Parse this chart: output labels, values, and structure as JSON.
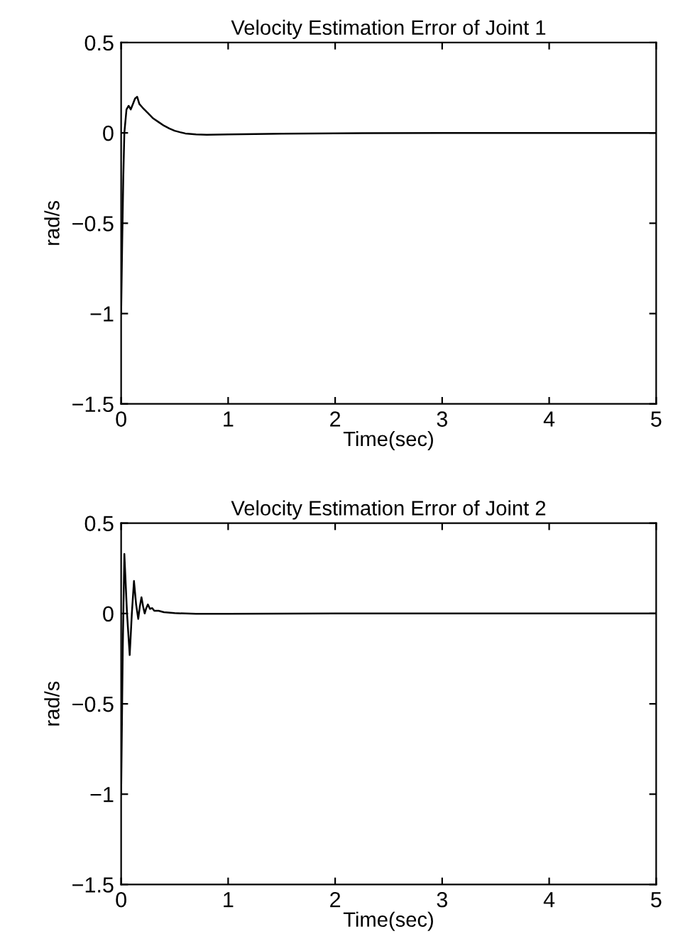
{
  "chart_data": [
    {
      "type": "line",
      "title": "Velocity Estimation Error of Joint 1",
      "xlabel": "Time(sec)",
      "ylabel": "rad/s",
      "xlim": [
        0,
        5
      ],
      "ylim": [
        -1.5,
        0.5
      ],
      "xticks": [
        0,
        1,
        2,
        3,
        4,
        5
      ],
      "yticks": [
        {
          "value": -1.5,
          "label": "−1.5"
        },
        {
          "value": -1,
          "label": "−1"
        },
        {
          "value": -0.5,
          "label": "−0.5"
        },
        0,
        0.5
      ],
      "grid": false,
      "legend": false,
      "series": [
        {
          "color": "#000000",
          "x": [
            0,
            0.01,
            0.02,
            0.03,
            0.05,
            0.07,
            0.09,
            0.11,
            0.13,
            0.15,
            0.17,
            0.2,
            0.25,
            0.3,
            0.35,
            0.4,
            0.45,
            0.5,
            0.55,
            0.6,
            0.7,
            0.8,
            1,
            1.5,
            2,
            3,
            4,
            5
          ],
          "values": [
            -1.0,
            -0.6,
            -0.25,
            0.0,
            0.13,
            0.15,
            0.13,
            0.16,
            0.19,
            0.2,
            0.16,
            0.14,
            0.11,
            0.08,
            0.06,
            0.04,
            0.025,
            0.012,
            0.004,
            -0.003,
            -0.008,
            -0.01,
            -0.008,
            -0.004,
            -0.002,
            0,
            0,
            0
          ]
        }
      ]
    },
    {
      "type": "line",
      "title": "Velocity Estimation Error of Joint 2",
      "xlabel": "Time(sec)",
      "ylabel": "rad/s",
      "xlim": [
        0,
        5
      ],
      "ylim": [
        -1.5,
        0.5
      ],
      "xticks": [
        0,
        1,
        2,
        3,
        4,
        5
      ],
      "yticks": [
        {
          "value": -1.5,
          "label": "−1.5"
        },
        {
          "value": -1,
          "label": "−1"
        },
        {
          "value": -0.5,
          "label": "−0.5"
        },
        0,
        0.5
      ],
      "grid": false,
      "legend": false,
      "series": [
        {
          "color": "#000000",
          "x": [
            0,
            0.015,
            0.03,
            0.055,
            0.08,
            0.1,
            0.12,
            0.14,
            0.16,
            0.175,
            0.19,
            0.205,
            0.22,
            0.235,
            0.25,
            0.27,
            0.29,
            0.31,
            0.35,
            0.4,
            0.5,
            0.7,
            1,
            2,
            3,
            4,
            5
          ],
          "values": [
            -1.0,
            -0.2,
            0.33,
            0.0,
            -0.23,
            0.0,
            0.18,
            0.05,
            -0.03,
            0.04,
            0.09,
            0.04,
            0.0,
            0.03,
            0.05,
            0.025,
            0.03,
            0.015,
            0.015,
            0.007,
            0.002,
            -0.002,
            -0.002,
            0,
            0,
            0,
            0
          ]
        }
      ]
    }
  ]
}
